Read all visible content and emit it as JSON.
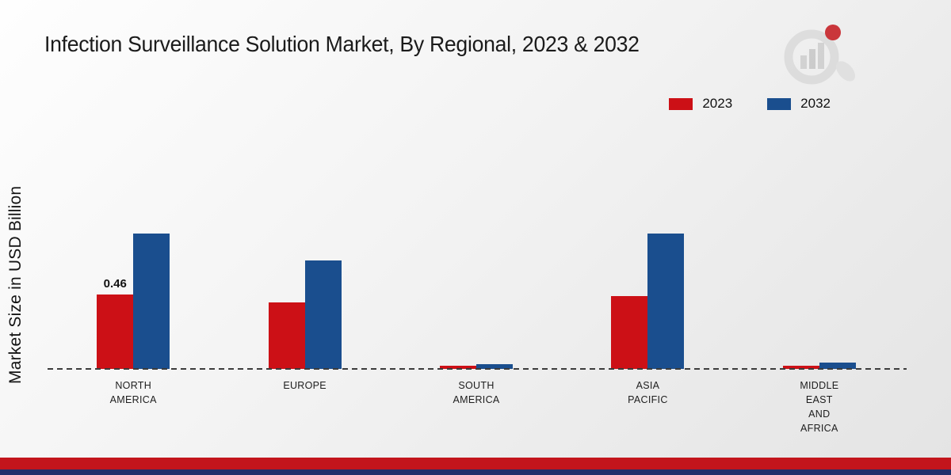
{
  "header": {
    "title": "Infection Surveillance Solution Market, By Regional, 2023 & 2032"
  },
  "y_axis": {
    "label": "Market Size in USD Billion"
  },
  "legend": [
    {
      "label": "2023",
      "color": "#cc1016"
    },
    {
      "label": "2032",
      "color": "#1a4e8e"
    }
  ],
  "chart_data": {
    "type": "bar",
    "title": "Infection Surveillance Solution Market, By Regional, 2023 & 2032",
    "ylabel": "Market Size in USD Billion",
    "ylim": [
      0,
      1.0
    ],
    "grid": false,
    "legend_position": "top-right",
    "baseline_style": "dashed",
    "categories": [
      "North America",
      "Europe",
      "South America",
      "Asia Pacific",
      "Middle East and Africa"
    ],
    "category_labels": [
      [
        "NORTH",
        "AMERICA"
      ],
      [
        "EUROPE"
      ],
      [
        "SOUTH",
        "AMERICA"
      ],
      [
        "ASIA",
        "PACIFIC"
      ],
      [
        "MIDDLE",
        "EAST",
        "AND",
        "AFRICA"
      ]
    ],
    "series": [
      {
        "name": "2023",
        "color": "#cc1016",
        "values": [
          0.46,
          0.41,
          0.02,
          0.45,
          0.02
        ]
      },
      {
        "name": "2032",
        "color": "#1a4e8e",
        "values": [
          0.84,
          0.67,
          0.03,
          0.84,
          0.04
        ]
      }
    ],
    "annotations": [
      {
        "category_index": 0,
        "series": "2023",
        "text": "0.46"
      }
    ]
  },
  "footer": {
    "stripe_colors": [
      "#c3151c",
      "#22306b"
    ]
  }
}
